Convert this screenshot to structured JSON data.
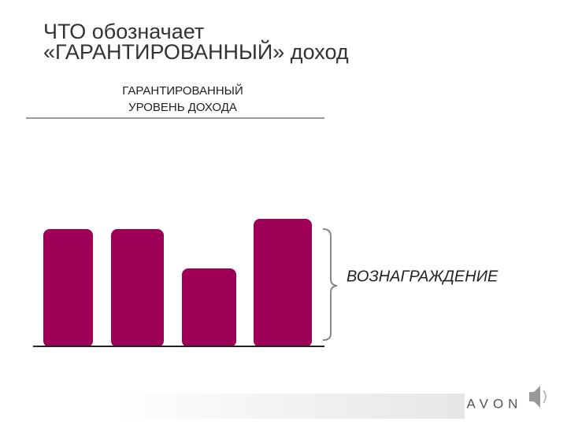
{
  "title": {
    "line1": "ЧТО обозначает",
    "line2": "«ГАРАНТИРОВАННЫЙ» доход"
  },
  "guaranteed_label": {
    "line1": "ГАРАНТИРОВАННЫЙ",
    "line2": "УРОВЕНЬ ДОХОДА"
  },
  "reward_label": "ВОЗНАГРАЖДЕНИЕ",
  "logo": "AVON"
}
